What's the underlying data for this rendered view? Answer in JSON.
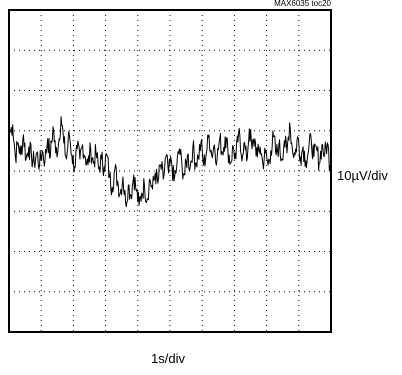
{
  "chart_data": {
    "type": "line",
    "title": "",
    "figure_tag": "MAX6035 toc20",
    "x_scale_label": "1s/div",
    "y_scale_label": "10µV/div",
    "grid": true,
    "divisions": {
      "x": 10,
      "y": 8
    },
    "xlim_div": [
      0,
      10
    ],
    "ylim_div": [
      -4,
      4
    ],
    "series": [
      {
        "values_div": [
          0.95,
          1.15,
          0.35,
          0.7,
          0.4,
          0.9,
          0.3,
          0.6,
          0.35,
          0.2,
          0.45,
          0.15,
          0.5,
          0.25,
          0.8,
          0.35,
          1.1,
          0.45,
          0.65,
          1.35,
          0.7,
          0.3,
          0.95,
          0.4,
          0.1,
          0.55,
          0.3,
          0.65,
          0.35,
          0.15,
          0.55,
          0.2,
          0.45,
          0.05,
          0.3,
          0.1,
          0.4,
          -0.15,
          -0.4,
          0.05,
          -0.25,
          -0.55,
          -0.15,
          -0.8,
          -0.35,
          -0.6,
          -0.1,
          -0.5,
          -0.85,
          -0.55,
          -0.35,
          -0.7,
          -0.2,
          -0.45,
          -0.05,
          -0.3,
          0.15,
          -0.2,
          0.35,
          -0.05,
          0.25,
          -0.25,
          0.1,
          0.55,
          0.1,
          -0.1,
          0.4,
          0.1,
          0.6,
          0.2,
          0.35,
          0.7,
          0.15,
          0.45,
          0.9,
          0.4,
          0.65,
          0.3,
          0.8,
          0.45,
          0.85,
          0.55,
          0.2,
          0.6,
          0.3,
          0.95,
          0.4,
          0.7,
          0.25,
          1.05,
          0.55,
          0.8,
          0.35,
          0.6,
          0.2,
          0.45,
          0.15,
          0.5,
          0.85,
          0.4,
          0.65,
          0.3,
          0.75,
          0.45,
          1.2,
          0.55,
          0.4,
          0.85,
          0.35,
          0.6,
          0.25,
          0.5,
          0.8,
          0.35,
          0.55,
          0.2,
          0.65,
          0.4,
          0.7,
          0.15
        ]
      }
    ]
  }
}
